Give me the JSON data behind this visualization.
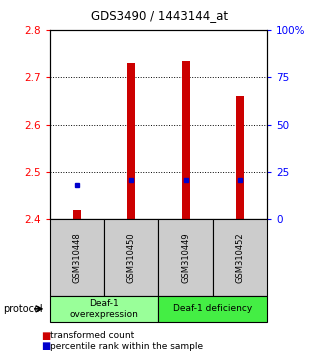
{
  "title": "GDS3490 / 1443144_at",
  "samples": [
    "GSM310448",
    "GSM310450",
    "GSM310449",
    "GSM310452"
  ],
  "transformed_counts": [
    2.42,
    2.73,
    2.735,
    2.66
  ],
  "percentile_ranks_pct": [
    18,
    21,
    21,
    21
  ],
  "bar_bottom": 2.4,
  "left_ylim": [
    2.4,
    2.8
  ],
  "right_ylim": [
    0,
    100
  ],
  "left_yticks": [
    2.4,
    2.5,
    2.6,
    2.7,
    2.8
  ],
  "right_yticks": [
    0,
    25,
    50,
    75,
    100
  ],
  "right_yticklabels": [
    "0",
    "25",
    "50",
    "75",
    "100%"
  ],
  "bar_color": "#cc0000",
  "percentile_color": "#0000cc",
  "bar_width": 0.15,
  "groups": [
    {
      "label": "Deaf-1\noverexpression",
      "color": "#99ff99"
    },
    {
      "label": "Deaf-1 deficiency",
      "color": "#44ee44"
    }
  ],
  "protocol_label": "protocol",
  "legend_tc_label": "transformed count",
  "legend_pr_label": "percentile rank within the sample",
  "bg_color": "#ffffff",
  "sample_box_color": "#cccccc"
}
